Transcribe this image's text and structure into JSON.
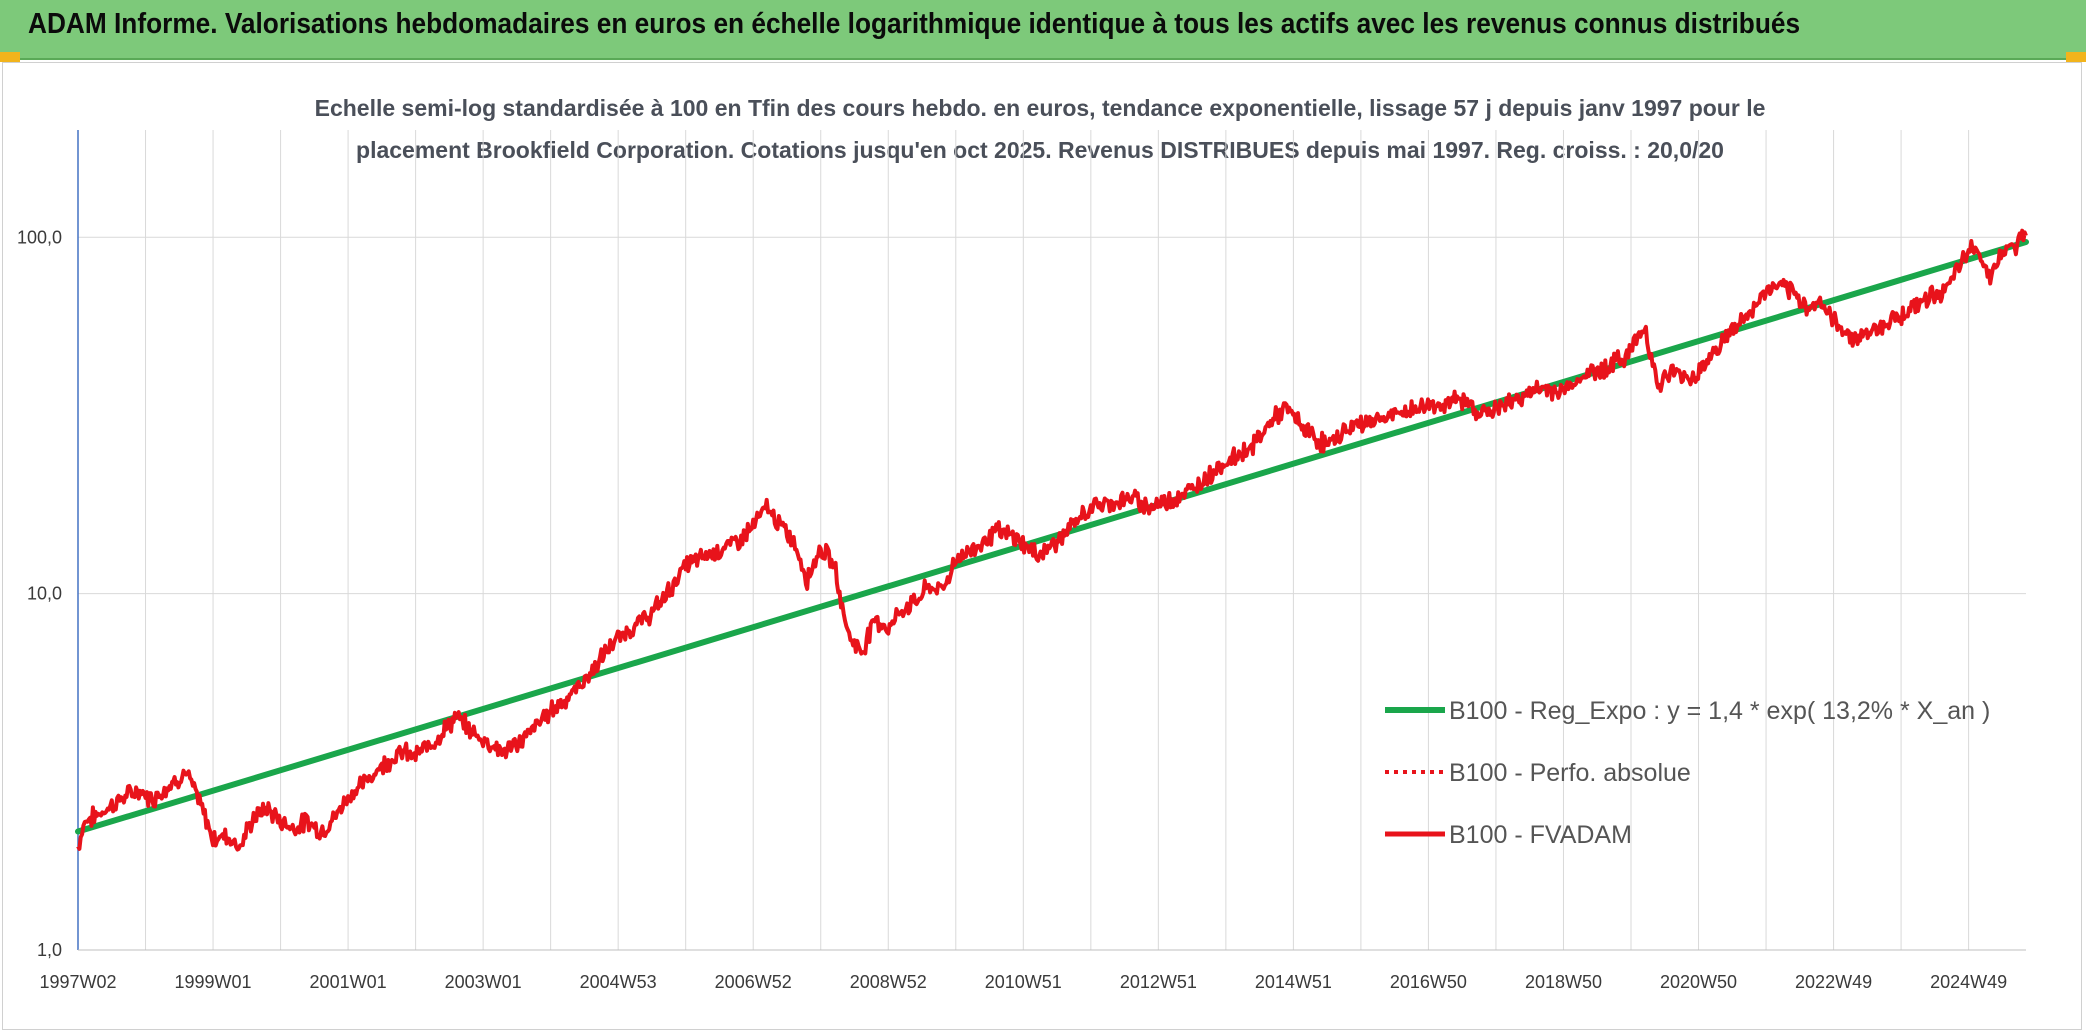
{
  "header": {
    "title": "ADAM Informe. Valorisations hebdomadaires en euros en échelle logarithmique identique à tous les actifs avec les revenus connus distribués"
  },
  "colors": {
    "header_bg": "#7dc97a",
    "corner": "#f2b41c",
    "trend": "#1aa64b",
    "price": "#e8131b",
    "grid": "#d9d9d9",
    "axis": "#4472c4"
  },
  "chart_data": {
    "type": "line",
    "title_line1": "Echelle semi-log standardisée à 100 en Tfin des cours hebdo. en euros, tendance exponentielle, lissage 57 j depuis janv 1997 pour le",
    "title_line2": "placement Brookfield Corporation. Cotations jusqu'en oct 2025. Revenus DISTRIBUES depuis mai 1997. Reg. croiss. : 20,0/20",
    "y_scale": "log",
    "ylim": [
      1,
      200
    ],
    "y_ticks": [
      {
        "value": 1,
        "label": "1,0"
      },
      {
        "value": 10,
        "label": "10,0"
      },
      {
        "value": 100,
        "label": "100,0"
      }
    ],
    "xlim": [
      1997.0,
      2025.85
    ],
    "x_ticks": [
      {
        "x": 1997.0,
        "label": "1997W02"
      },
      {
        "x": 1999.0,
        "label": "1999W01"
      },
      {
        "x": 2001.0,
        "label": "2001W01"
      },
      {
        "x": 2003.0,
        "label": "2003W01"
      },
      {
        "x": 2005.0,
        "label": "2004W53"
      },
      {
        "x": 2007.0,
        "label": "2006W52"
      },
      {
        "x": 2009.0,
        "label": "2008W52"
      },
      {
        "x": 2011.0,
        "label": "2010W51"
      },
      {
        "x": 2013.0,
        "label": "2012W51"
      },
      {
        "x": 2015.0,
        "label": "2014W51"
      },
      {
        "x": 2017.0,
        "label": "2016W50"
      },
      {
        "x": 2019.0,
        "label": "2018W50"
      },
      {
        "x": 2021.0,
        "label": "2020W50"
      },
      {
        "x": 2023.0,
        "label": "2022W49"
      },
      {
        "x": 2025.0,
        "label": "2024W49"
      }
    ],
    "minor_gridlines_x": [
      1998,
      2000,
      2002,
      2004,
      2006,
      2008,
      2010,
      2012,
      2014,
      2016,
      2018,
      2020,
      2022,
      2024
    ],
    "legend_position": "center-right",
    "series": [
      {
        "name": "B100 - Reg_Expo : y = 1,4 * exp( 13,2% *  X_an )",
        "style": "solid-thick",
        "color": "#1aa64b",
        "x": [
          1997.0,
          2025.85
        ],
        "y": [
          2.15,
          97
        ]
      },
      {
        "name": "B100 - Perfo. absolue",
        "style": "dotted",
        "color": "#e8131b",
        "x": [],
        "y": []
      },
      {
        "name": "B100 - FVADAM",
        "style": "solid",
        "color": "#e8131b",
        "x": [
          1997.0,
          1997.1,
          1997.3,
          1997.5,
          1997.7,
          1997.9,
          1998.1,
          1998.3,
          1998.6,
          1998.8,
          1999.0,
          1999.2,
          1999.4,
          1999.6,
          1999.8,
          2000.0,
          2000.2,
          2000.4,
          2000.6,
          2000.8,
          2001.0,
          2001.2,
          2001.5,
          2001.8,
          2002.0,
          2002.3,
          2002.6,
          2002.9,
          2003.1,
          2003.3,
          2003.6,
          2003.8,
          2004.0,
          2004.3,
          2004.6,
          2004.9,
          2005.2,
          2005.5,
          2005.8,
          2006.0,
          2006.3,
          2006.6,
          2006.8,
          2007.0,
          2007.2,
          2007.4,
          2007.6,
          2007.8,
          2008.0,
          2008.2,
          2008.4,
          2008.6,
          2008.8,
          2009.0,
          2009.2,
          2009.4,
          2009.6,
          2009.8,
          2010.0,
          2010.3,
          2010.6,
          2010.9,
          2011.2,
          2011.5,
          2011.8,
          2012.0,
          2012.3,
          2012.6,
          2012.9,
          2013.2,
          2013.5,
          2013.8,
          2014.1,
          2014.4,
          2014.7,
          2014.9,
          2015.2,
          2015.5,
          2015.8,
          2016.0,
          2016.3,
          2016.6,
          2016.9,
          2017.2,
          2017.5,
          2017.8,
          2018.1,
          2018.4,
          2018.7,
          2019.0,
          2019.3,
          2019.6,
          2019.9,
          2020.1,
          2020.2,
          2020.4,
          2020.6,
          2020.9,
          2021.2,
          2021.5,
          2021.8,
          2022.0,
          2022.2,
          2022.4,
          2022.6,
          2022.8,
          2023.0,
          2023.3,
          2023.6,
          2023.8,
          2024.1,
          2024.4,
          2024.7,
          2024.9,
          2025.1,
          2025.3,
          2025.5,
          2025.7,
          2025.85
        ],
        "y": [
          1.95,
          2.3,
          2.4,
          2.55,
          2.7,
          2.8,
          2.65,
          2.85,
          3.15,
          2.6,
          2.05,
          2.1,
          1.95,
          2.35,
          2.5,
          2.3,
          2.2,
          2.3,
          2.15,
          2.35,
          2.7,
          2.9,
          3.3,
          3.6,
          3.5,
          3.9,
          4.5,
          4.0,
          3.8,
          3.6,
          3.9,
          4.3,
          4.7,
          5.2,
          6.0,
          7.2,
          8.0,
          8.8,
          10.5,
          12.0,
          12.8,
          13.5,
          14.2,
          15.5,
          17.5,
          15.5,
          14.0,
          11.0,
          13.5,
          12.0,
          7.8,
          6.8,
          8.5,
          8.0,
          9.0,
          9.5,
          10.5,
          10.2,
          12.5,
          13.5,
          15.0,
          14.3,
          12.8,
          14.0,
          16.0,
          17.5,
          18.0,
          18.5,
          17.5,
          18.5,
          19.5,
          22.0,
          24.0,
          26.0,
          31.0,
          33.0,
          28.5,
          26.0,
          29.0,
          30.0,
          31.0,
          32.0,
          33.5,
          34.0,
          35.0,
          32.0,
          33.5,
          36.0,
          37.5,
          37.0,
          41.0,
          43.0,
          46.0,
          52.0,
          57.0,
          38.0,
          42.0,
          40.0,
          47.0,
          55.0,
          62.0,
          71.0,
          73.0,
          69.0,
          64.0,
          66.0,
          58.0,
          52.0,
          55.0,
          58.0,
          62.0,
          68.0,
          72.0,
          85.0,
          96.0,
          78.0,
          90.0,
          95.0,
          101.0
        ]
      }
    ]
  }
}
